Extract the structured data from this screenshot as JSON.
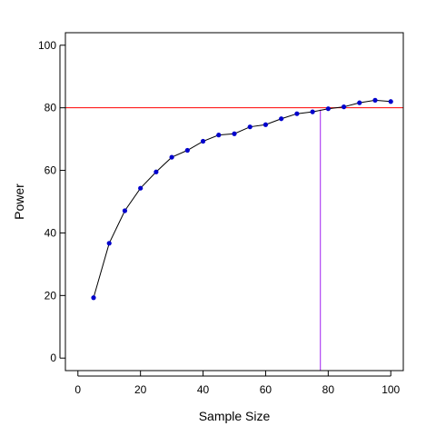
{
  "chart_data": {
    "type": "line",
    "title": "",
    "xlabel": "Sample Size",
    "ylabel": "Power",
    "xlim": [
      -4,
      104
    ],
    "ylim": [
      -4,
      104
    ],
    "xticks": [
      0,
      20,
      40,
      60,
      80,
      100
    ],
    "yticks": [
      0,
      20,
      40,
      60,
      80,
      100
    ],
    "grid": false,
    "legend": "none",
    "x": [
      5,
      10,
      15,
      20,
      25,
      30,
      35,
      40,
      45,
      50,
      55,
      60,
      65,
      70,
      75,
      80,
      85,
      90,
      95,
      100
    ],
    "series": [
      {
        "values": [
          19.3,
          36.7,
          47.1,
          54.3,
          59.5,
          64.2,
          66.4,
          69.3,
          71.3,
          71.7,
          73.9,
          74.6,
          76.5,
          78.1,
          78.7,
          79.7,
          80.3,
          81.6,
          82.4,
          82.0
        ],
        "line_color": "#000000",
        "marker_color": "#0000cd"
      }
    ],
    "reference_lines": [
      {
        "orientation": "horizontal",
        "value": 80,
        "color": "#ff0000"
      },
      {
        "orientation": "vertical",
        "value": 77.5,
        "color": "#a020f0"
      }
    ]
  }
}
